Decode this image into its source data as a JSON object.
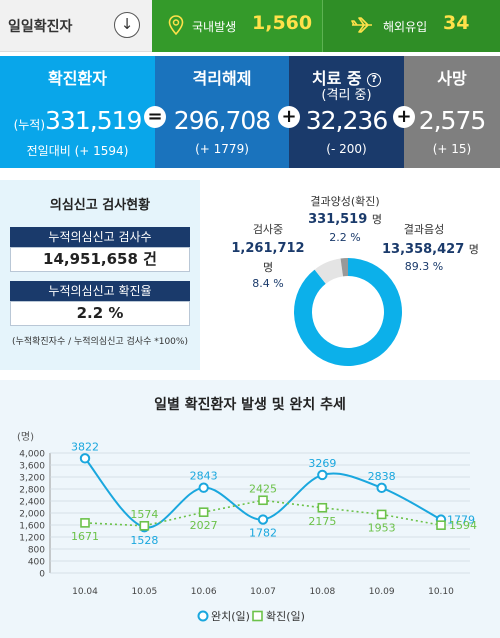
{
  "topbar": {
    "title": "일일확진자",
    "domestic_label": "국내발생",
    "domestic_value": "1,560",
    "overseas_label": "해외유입",
    "overseas_value": "34",
    "colors": {
      "green": "#349a2a",
      "yellow": "#ffe14a"
    }
  },
  "summary": {
    "confirmed": {
      "title": "확진환자",
      "prefix": "(누적)",
      "value": "331,519",
      "delta": "전일대비 (+ 1594)"
    },
    "released": {
      "title": "격리해제",
      "value": "296,708",
      "delta": "(+ 1779)"
    },
    "treating": {
      "title": "치료 중",
      "help": "?",
      "sub": "(격리 중)",
      "value": "32,236",
      "delta": "(- 200)"
    },
    "deaths": {
      "title": "사망",
      "value": "2,575",
      "delta": "(+ 15)"
    },
    "operators": [
      "=",
      "+",
      "+"
    ]
  },
  "tests": {
    "title": "의심신고 검사현황",
    "total_label": "누적의심신고 검사수",
    "total_value": "14,951,658 건",
    "rate_label": "누적의심신고 확진율",
    "rate_value": "2.2 %",
    "note": "(누적확진자수 / 누적의심신고 검사수 *100%)"
  },
  "pie": {
    "positive": {
      "label": "결과양성(확진)",
      "value": "331,519",
      "unit": "명",
      "pct": "2.2 %"
    },
    "testing": {
      "label": "검사중",
      "value": "1,261,712",
      "unit": "명",
      "pct": "8.4 %"
    },
    "negative": {
      "label": "결과음성",
      "value": "13,358,427",
      "unit": "명",
      "pct": "89.3 %"
    },
    "colors": {
      "negative": "#0cb0ea",
      "testing": "#e4e4e4",
      "positive": "#999999"
    }
  },
  "chart_data": {
    "type": "line",
    "title": "일별 확진환자 발생 및 완치 추세",
    "ylabel": "(명)",
    "categories": [
      "10.04",
      "10.05",
      "10.06",
      "10.07",
      "10.08",
      "10.09",
      "10.10"
    ],
    "yticks": [
      0,
      400,
      800,
      1200,
      1600,
      2000,
      2400,
      2800,
      3200,
      3600,
      4000
    ],
    "ytick_labels": [
      "0",
      "400",
      "800",
      "1,200",
      "1,600",
      "2,000",
      "2,400",
      "2,800",
      "3,200",
      "3,600",
      "4,000"
    ],
    "ylim": [
      0,
      4000
    ],
    "series": [
      {
        "name": "완치(일)",
        "values": [
          3822,
          1528,
          2843,
          1782,
          3269,
          2838,
          1779
        ],
        "color": "#1aa7de",
        "style": "solid"
      },
      {
        "name": "확진(일)",
        "values": [
          1671,
          1574,
          2027,
          2425,
          2175,
          1953,
          1594
        ],
        "color": "#6cc24a",
        "style": "dotted"
      }
    ],
    "legend": "bottom-center"
  }
}
